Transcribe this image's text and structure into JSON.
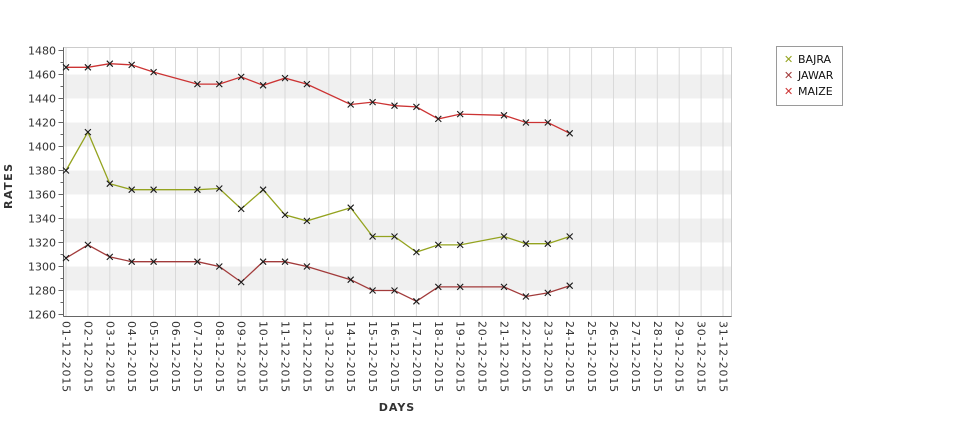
{
  "page": {
    "background": "#ffffff"
  },
  "chart_data": {
    "type": "line",
    "title": "",
    "xlabel": "DAYS",
    "ylabel": "RATES",
    "ylim": [
      1260,
      1480
    ],
    "ytick_step": 20,
    "yminor_step": 10,
    "grid": true,
    "plot_band_colors": [
      "#ffffff",
      "#f0f0f0"
    ],
    "vgrid_color": "#d9d9d9",
    "axis_color": "#666666",
    "plot_border_color": "#cccccc",
    "tick_text_color": "#333333",
    "marker": "x",
    "marker_color": "#1b1b1b",
    "legend_position": "outside-top-right",
    "x_categories": [
      "01-12-2015",
      "02-12-2015",
      "03-12-2015",
      "04-12-2015",
      "05-12-2015",
      "06-12-2015",
      "07-12-2015",
      "08-12-2015",
      "09-12-2015",
      "10-12-2015",
      "11-12-2015",
      "12-12-2015",
      "13-12-2015",
      "14-12-2015",
      "15-12-2015",
      "16-12-2015",
      "17-12-2015",
      "18-12-2015",
      "19-12-2015",
      "20-12-2015",
      "21-12-2015",
      "22-12-2015",
      "23-12-2015",
      "24-12-2015",
      "25-12-2015",
      "26-12-2015",
      "27-12-2015",
      "28-12-2015",
      "29-12-2015",
      "30-12-2015",
      "31-12-2015"
    ],
    "series": [
      {
        "name": "BAJRA",
        "color": "#94a31f",
        "points": [
          [
            "01-12-2015",
            1380
          ],
          [
            "02-12-2015",
            1412
          ],
          [
            "03-12-2015",
            1369
          ],
          [
            "04-12-2015",
            1364
          ],
          [
            "05-12-2015",
            1364
          ],
          [
            "07-12-2015",
            1364
          ],
          [
            "08-12-2015",
            1365
          ],
          [
            "09-12-2015",
            1348
          ],
          [
            "10-12-2015",
            1364
          ],
          [
            "11-12-2015",
            1343
          ],
          [
            "12-12-2015",
            1338
          ],
          [
            "14-12-2015",
            1349
          ],
          [
            "15-12-2015",
            1325
          ],
          [
            "16-12-2015",
            1325
          ],
          [
            "17-12-2015",
            1312
          ],
          [
            "18-12-2015",
            1318
          ],
          [
            "19-12-2015",
            1318
          ],
          [
            "21-12-2015",
            1325
          ],
          [
            "22-12-2015",
            1319
          ],
          [
            "23-12-2015",
            1319
          ],
          [
            "24-12-2015",
            1325
          ]
        ]
      },
      {
        "name": "JAWAR",
        "color": "#a23b3b",
        "points": [
          [
            "01-12-2015",
            1307
          ],
          [
            "02-12-2015",
            1318
          ],
          [
            "03-12-2015",
            1308
          ],
          [
            "04-12-2015",
            1304
          ],
          [
            "05-12-2015",
            1304
          ],
          [
            "07-12-2015",
            1304
          ],
          [
            "08-12-2015",
            1300
          ],
          [
            "09-12-2015",
            1287
          ],
          [
            "10-12-2015",
            1304
          ],
          [
            "11-12-2015",
            1304
          ],
          [
            "12-12-2015",
            1300
          ],
          [
            "14-12-2015",
            1289
          ],
          [
            "15-12-2015",
            1280
          ],
          [
            "16-12-2015",
            1280
          ],
          [
            "17-12-2015",
            1271
          ],
          [
            "18-12-2015",
            1283
          ],
          [
            "19-12-2015",
            1283
          ],
          [
            "21-12-2015",
            1283
          ],
          [
            "22-12-2015",
            1275
          ],
          [
            "23-12-2015",
            1278
          ],
          [
            "24-12-2015",
            1284
          ]
        ]
      },
      {
        "name": "MAIZE",
        "color": "#cc3333",
        "points": [
          [
            "01-12-2015",
            1466
          ],
          [
            "02-12-2015",
            1466
          ],
          [
            "03-12-2015",
            1469
          ],
          [
            "04-12-2015",
            1468
          ],
          [
            "05-12-2015",
            1462
          ],
          [
            "07-12-2015",
            1452
          ],
          [
            "08-12-2015",
            1452
          ],
          [
            "09-12-2015",
            1458
          ],
          [
            "10-12-2015",
            1451
          ],
          [
            "11-12-2015",
            1457
          ],
          [
            "12-12-2015",
            1452
          ],
          [
            "14-12-2015",
            1435
          ],
          [
            "15-12-2015",
            1437
          ],
          [
            "16-12-2015",
            1434
          ],
          [
            "17-12-2015",
            1433
          ],
          [
            "18-12-2015",
            1423
          ],
          [
            "19-12-2015",
            1427
          ],
          [
            "21-12-2015",
            1426
          ],
          [
            "22-12-2015",
            1420
          ],
          [
            "23-12-2015",
            1420
          ],
          [
            "24-12-2015",
            1411
          ]
        ]
      }
    ]
  }
}
